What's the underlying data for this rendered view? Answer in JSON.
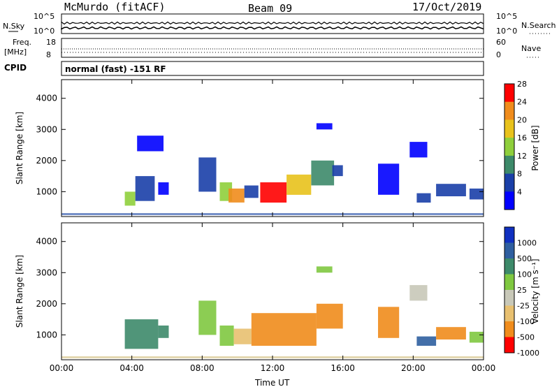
{
  "header": {
    "station": "McMurdo (fitACF)",
    "beam": "Beam 09",
    "date": "17/Oct/2019"
  },
  "top_panels": {
    "nsky_label": "N.Sky",
    "nsearch_label": "N.Search",
    "nsky_ticks": [
      "10^5",
      "10^0"
    ],
    "nsearch_ticks": [
      "10^5",
      "10^0"
    ],
    "freq_label_1": "Freq.",
    "freq_label_2": "[MHz]",
    "freq_ticks": [
      "18",
      "8"
    ],
    "nave_label": "Nave",
    "nave_ticks": [
      "60",
      "0"
    ],
    "cpid_label": "CPID",
    "cpid_text": "normal (fast) -151 RF"
  },
  "chart_data": [
    {
      "type": "heatmap",
      "title": "Power",
      "ylabel": "Slant Range [km]",
      "xlabel": "",
      "y_ticks": [
        1000,
        2000,
        3000,
        4000
      ],
      "ylim": [
        200,
        4600
      ],
      "xlim": [
        0,
        24
      ],
      "colorbar": {
        "label": "Power [dB]",
        "ticks": [
          "4",
          "8",
          "12",
          "16",
          "20",
          "24",
          "28"
        ],
        "colors": [
          "#0000ff",
          "#1a3fa8",
          "#3d8a6a",
          "#8fcf3c",
          "#e8c21c",
          "#f08c1c",
          "#ff0000"
        ]
      },
      "regions": [
        {
          "t0": 3.6,
          "t1": 4.2,
          "r0": 550,
          "r1": 1000,
          "value": 16
        },
        {
          "t0": 4.2,
          "t1": 5.3,
          "r0": 700,
          "r1": 1500,
          "value": 10
        },
        {
          "t0": 5.5,
          "t1": 6.1,
          "r0": 900,
          "r1": 1300,
          "value": 7
        },
        {
          "t0": 7.8,
          "t1": 8.8,
          "r0": 1000,
          "r1": 2100,
          "value": 10
        },
        {
          "t0": 9.0,
          "t1": 9.7,
          "r0": 700,
          "r1": 1300,
          "value": 18
        },
        {
          "t0": 9.5,
          "t1": 10.4,
          "r0": 650,
          "r1": 1100,
          "value": 24
        },
        {
          "t0": 10.4,
          "t1": 11.2,
          "r0": 800,
          "r1": 1200,
          "value": 11
        },
        {
          "t0": 11.3,
          "t1": 12.8,
          "r0": 650,
          "r1": 1300,
          "value": 28
        },
        {
          "t0": 12.8,
          "t1": 14.2,
          "r0": 900,
          "r1": 1550,
          "value": 22
        },
        {
          "t0": 14.2,
          "t1": 15.5,
          "r0": 1200,
          "r1": 2000,
          "value": 14
        },
        {
          "t0": 15.4,
          "t1": 16.0,
          "r0": 1500,
          "r1": 1850,
          "value": 10
        },
        {
          "t0": 18.0,
          "t1": 19.2,
          "r0": 900,
          "r1": 1900,
          "value": 6
        },
        {
          "t0": 19.8,
          "t1": 20.8,
          "r0": 2100,
          "r1": 2600,
          "value": 7
        },
        {
          "t0": 20.2,
          "t1": 21.0,
          "r0": 650,
          "r1": 950,
          "value": 9
        },
        {
          "t0": 21.3,
          "t1": 23.0,
          "r0": 850,
          "r1": 1250,
          "value": 10
        },
        {
          "t0": 23.2,
          "t1": 24.0,
          "r0": 750,
          "r1": 1100,
          "value": 9
        },
        {
          "t0": 4.3,
          "t1": 5.8,
          "r0": 2300,
          "r1": 2800,
          "value": 5
        },
        {
          "t0": 14.5,
          "t1": 15.4,
          "r0": 3000,
          "r1": 3200,
          "value": 6
        }
      ]
    },
    {
      "type": "heatmap",
      "title": "Velocity",
      "ylabel": "Slant Range [km]",
      "xlabel": "Time UT",
      "x_ticks": [
        "00:00",
        "04:00",
        "08:00",
        "12:00",
        "16:00",
        "20:00",
        "00:00"
      ],
      "y_ticks": [
        1000,
        2000,
        3000,
        4000
      ],
      "ylim": [
        200,
        4600
      ],
      "xlim": [
        0,
        24
      ],
      "colorbar": {
        "label": "Velocity [m s⁻¹]",
        "ticks": [
          "1000",
          "500",
          "100",
          "25",
          "-25",
          "-100",
          "-500",
          "-1000"
        ],
        "colors": [
          "#1030c0",
          "#2f5fa0",
          "#3d8a6a",
          "#7fc840",
          "#c8c8b8",
          "#e8c070",
          "#f08c1c",
          "#ff0000"
        ]
      },
      "regions": [
        {
          "t0": 3.6,
          "t1": 5.5,
          "r0": 550,
          "r1": 1500,
          "value": 150
        },
        {
          "t0": 5.5,
          "t1": 6.1,
          "r0": 900,
          "r1": 1300,
          "value": 150
        },
        {
          "t0": 7.8,
          "t1": 8.8,
          "r0": 1000,
          "r1": 2100,
          "value": 80
        },
        {
          "t0": 9.0,
          "t1": 9.8,
          "r0": 650,
          "r1": 1300,
          "value": 40
        },
        {
          "t0": 9.8,
          "t1": 10.8,
          "r0": 700,
          "r1": 1200,
          "value": -30
        },
        {
          "t0": 10.8,
          "t1": 14.5,
          "r0": 650,
          "r1": 1700,
          "value": -300
        },
        {
          "t0": 14.5,
          "t1": 16.0,
          "r0": 1200,
          "r1": 2000,
          "value": -300
        },
        {
          "t0": 18.0,
          "t1": 19.2,
          "r0": 900,
          "r1": 1900,
          "value": -300
        },
        {
          "t0": 19.8,
          "t1": 20.8,
          "r0": 2100,
          "r1": 2600,
          "value": 0
        },
        {
          "t0": 20.2,
          "t1": 21.3,
          "r0": 650,
          "r1": 950,
          "value": 800
        },
        {
          "t0": 21.3,
          "t1": 23.0,
          "r0": 850,
          "r1": 1250,
          "value": -300
        },
        {
          "t0": 23.2,
          "t1": 24.0,
          "r0": 750,
          "r1": 1100,
          "value": 50
        },
        {
          "t0": 14.5,
          "t1": 15.4,
          "r0": 3000,
          "r1": 3200,
          "value": 60
        }
      ]
    }
  ]
}
